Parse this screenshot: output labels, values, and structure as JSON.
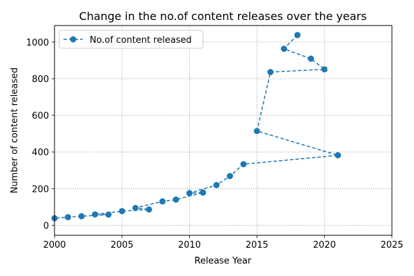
{
  "chart_data": {
    "type": "line",
    "title": "Change in the no.of content releases over the years",
    "xlabel": "Release Year",
    "ylabel": "Number of content released",
    "xlim": [
      2000,
      2025
    ],
    "ylim": [
      -55,
      1090
    ],
    "x_ticks": [
      2000,
      2005,
      2010,
      2015,
      2020,
      2025
    ],
    "y_ticks": [
      0,
      200,
      400,
      600,
      800,
      1000
    ],
    "grid": true,
    "legend_position": "upper-left",
    "series": [
      {
        "name": "No.of content released",
        "color": "#1f77b4",
        "line_style": "dashed",
        "marker": "circle",
        "x": [
          2018,
          2017,
          2019,
          2020,
          2016,
          2015,
          2021,
          2014,
          2013,
          2012,
          2010,
          2011,
          2009,
          2008,
          2006,
          2007,
          2005,
          2003,
          2004,
          2002,
          2001,
          2000
        ],
        "y": [
          1038,
          963,
          909,
          851,
          836,
          514,
          382,
          333,
          268,
          219,
          175,
          178,
          140,
          130,
          94,
          86,
          77,
          59,
          58,
          49,
          44,
          38
        ]
      }
    ]
  }
}
